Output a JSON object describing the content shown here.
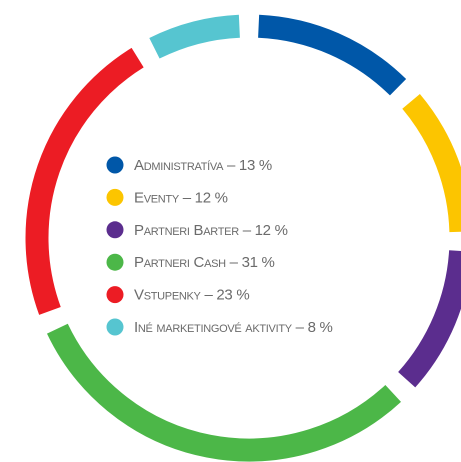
{
  "chart_data": {
    "type": "donut",
    "categories": [
      "Administratíva – 13 %",
      "Eventy – 12 %",
      "Partneri Barter – 12 %",
      "Partneri Cash – 31 %",
      "Vstupenky – 23 %",
      "Iné marketingové aktivity – 8 %"
    ],
    "values": [
      13,
      12,
      12,
      31,
      23,
      8
    ],
    "colors": [
      "#0057a8",
      "#fcc500",
      "#5b2d8e",
      "#4cb748",
      "#ec1c24",
      "#56c5d0"
    ]
  }
}
